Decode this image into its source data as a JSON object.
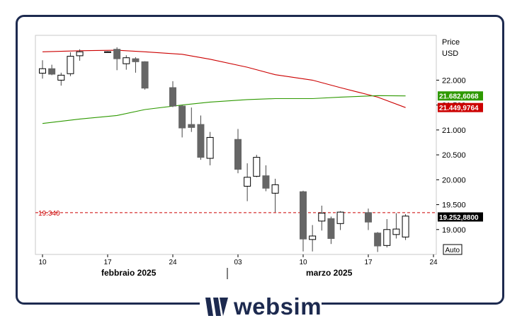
{
  "brand": {
    "name": "websim",
    "color": "#1d2a4f"
  },
  "chart_data": {
    "type": "candlestick",
    "axis": {
      "title": "Price",
      "unit": "USD"
    },
    "y_ticks": [
      "22.000",
      "21.500",
      "21.000",
      "20.500",
      "20.000",
      "19.500",
      "19.000"
    ],
    "y_tick_values": [
      22000,
      21500,
      21000,
      20500,
      20000,
      19500,
      19000
    ],
    "ylim": [
      18500,
      22900
    ],
    "x_ticks": [
      {
        "label": "10",
        "date": "2025-02-10"
      },
      {
        "label": "17",
        "date": "2025-02-17"
      },
      {
        "label": "24",
        "date": "2025-02-24"
      },
      {
        "label": "03",
        "date": "2025-03-03"
      },
      {
        "label": "10",
        "date": "2025-03-10"
      },
      {
        "label": "17",
        "date": "2025-03-17"
      },
      {
        "label": "24",
        "date": "2025-03-24"
      }
    ],
    "months": [
      "febbraio 2025",
      "marzo 2025"
    ],
    "scale_mode": "Auto",
    "candles": [
      {
        "date": "2025-02-10",
        "o": 22140,
        "h": 22400,
        "l": 22030,
        "c": 22230
      },
      {
        "date": "2025-02-11",
        "o": 22230,
        "h": 22310,
        "l": 22100,
        "c": 22120
      },
      {
        "date": "2025-02-12",
        "o": 22000,
        "h": 22150,
        "l": 21890,
        "c": 22100
      },
      {
        "date": "2025-02-13",
        "o": 22130,
        "h": 22560,
        "l": 22080,
        "c": 22480
      },
      {
        "date": "2025-02-14",
        "o": 22490,
        "h": 22620,
        "l": 22390,
        "c": 22570
      },
      {
        "date": "2025-02-17",
        "o": 22570,
        "h": 22580,
        "l": 22560,
        "c": 22570
      },
      {
        "date": "2025-02-18",
        "o": 22620,
        "h": 22660,
        "l": 22200,
        "c": 22430
      },
      {
        "date": "2025-02-19",
        "o": 22330,
        "h": 22500,
        "l": 22210,
        "c": 22450
      },
      {
        "date": "2025-02-20",
        "o": 22430,
        "h": 22460,
        "l": 22150,
        "c": 22370
      },
      {
        "date": "2025-02-21",
        "o": 22370,
        "h": 22380,
        "l": 21810,
        "c": 21840
      },
      {
        "date": "2025-02-24",
        "o": 21850,
        "h": 21980,
        "l": 21460,
        "c": 21480
      },
      {
        "date": "2025-02-25",
        "o": 21480,
        "h": 21500,
        "l": 20850,
        "c": 21040
      },
      {
        "date": "2025-02-26",
        "o": 21110,
        "h": 21450,
        "l": 20960,
        "c": 21050
      },
      {
        "date": "2025-02-27",
        "o": 21110,
        "h": 21290,
        "l": 20400,
        "c": 20450
      },
      {
        "date": "2025-02-28",
        "o": 20430,
        "h": 20960,
        "l": 20290,
        "c": 20850
      },
      {
        "date": "2025-03-03",
        "o": 20810,
        "h": 21020,
        "l": 20130,
        "c": 20210
      },
      {
        "date": "2025-03-04",
        "o": 19870,
        "h": 20330,
        "l": 19570,
        "c": 20050
      },
      {
        "date": "2025-03-05",
        "o": 20070,
        "h": 20500,
        "l": 20050,
        "c": 20450
      },
      {
        "date": "2025-03-06",
        "o": 20080,
        "h": 20290,
        "l": 19770,
        "c": 19830
      },
      {
        "date": "2025-03-07",
        "o": 19730,
        "h": 20020,
        "l": 19350,
        "c": 19900
      },
      {
        "date": "2025-03-10",
        "o": 19760,
        "h": 19780,
        "l": 18560,
        "c": 18810
      },
      {
        "date": "2025-03-11",
        "o": 18800,
        "h": 19090,
        "l": 18560,
        "c": 18870
      },
      {
        "date": "2025-03-12",
        "o": 19170,
        "h": 19480,
        "l": 18980,
        "c": 19330
      },
      {
        "date": "2025-03-13",
        "o": 19220,
        "h": 19260,
        "l": 18710,
        "c": 18820
      },
      {
        "date": "2025-03-14",
        "o": 19120,
        "h": 19370,
        "l": 18990,
        "c": 19350
      },
      {
        "date": "2025-03-17",
        "o": 19340,
        "h": 19420,
        "l": 18990,
        "c": 19150
      },
      {
        "date": "2025-03-18",
        "o": 18930,
        "h": 18950,
        "l": 18550,
        "c": 18670
      },
      {
        "date": "2025-03-19",
        "o": 18680,
        "h": 19210,
        "l": 18640,
        "c": 19000
      },
      {
        "date": "2025-03-20",
        "o": 18900,
        "h": 19330,
        "l": 18820,
        "c": 19010
      },
      {
        "date": "2025-03-21",
        "o": 18850,
        "h": 19310,
        "l": 18790,
        "c": 19270
      }
    ],
    "moving_averages": [
      {
        "color": "#cc0000",
        "last_value_label": "21.449,9764",
        "points": [
          {
            "date": "2025-02-10",
            "v": 22570
          },
          {
            "date": "2025-02-14",
            "v": 22590
          },
          {
            "date": "2025-02-18",
            "v": 22600
          },
          {
            "date": "2025-02-21",
            "v": 22570
          },
          {
            "date": "2025-02-25",
            "v": 22520
          },
          {
            "date": "2025-02-28",
            "v": 22420
          },
          {
            "date": "2025-03-04",
            "v": 22260
          },
          {
            "date": "2025-03-07",
            "v": 22110
          },
          {
            "date": "2025-03-11",
            "v": 22000
          },
          {
            "date": "2025-03-14",
            "v": 21850
          },
          {
            "date": "2025-03-18",
            "v": 21660
          },
          {
            "date": "2025-03-21",
            "v": 21450
          }
        ]
      },
      {
        "color": "#2e9900",
        "last_value_label": "21.682,6068",
        "points": [
          {
            "date": "2025-02-10",
            "v": 21130
          },
          {
            "date": "2025-02-14",
            "v": 21220
          },
          {
            "date": "2025-02-18",
            "v": 21290
          },
          {
            "date": "2025-02-21",
            "v": 21410
          },
          {
            "date": "2025-02-25",
            "v": 21500
          },
          {
            "date": "2025-02-28",
            "v": 21560
          },
          {
            "date": "2025-03-04",
            "v": 21610
          },
          {
            "date": "2025-03-07",
            "v": 21630
          },
          {
            "date": "2025-03-11",
            "v": 21630
          },
          {
            "date": "2025-03-14",
            "v": 21660
          },
          {
            "date": "2025-03-18",
            "v": 21690
          },
          {
            "date": "2025-03-21",
            "v": 21683
          }
        ]
      }
    ],
    "reference_line": {
      "value": 19340,
      "label": "19.340",
      "color": "#cc0000"
    },
    "last_price": {
      "value": 19252.88,
      "label": "19.252,8800",
      "bg": "#000000"
    },
    "colors": {
      "up_fill": "#ffffff",
      "down_fill": "#666666",
      "candle_stroke": "#444444",
      "axis": "#000000"
    }
  }
}
